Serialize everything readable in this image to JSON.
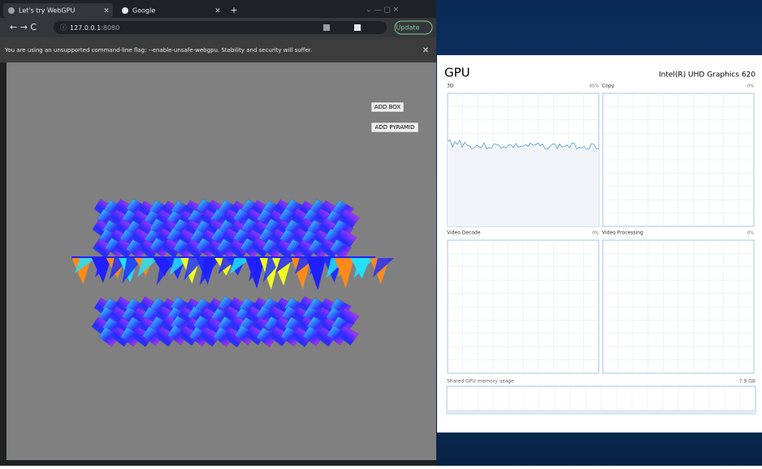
{
  "browser": {
    "tabs": [
      "Let's try WebGPU",
      "Google"
    ],
    "url_host": "127.0.0.1",
    "url_port": ":8080",
    "update_button": "Update",
    "infobar": "You are using an unsupported command-line flag: --enable-unsafe-webgpu. Stability and security will suffer.",
    "buttons": [
      "ADD BOX",
      "ADD PYRAMID"
    ]
  },
  "task_manager": {
    "title": "GPU",
    "adapter": "Intel(R) UHD Graphics 620",
    "engines": [
      {
        "name": "3D",
        "usage": "65%"
      },
      {
        "name": "Copy",
        "usage": "0%"
      },
      {
        "name": "Video Decode",
        "usage": "0%"
      },
      {
        "name": "Video Processing",
        "usage": "0%"
      }
    ],
    "shared_memory": {
      "label": "Shared GPU memory usage",
      "value": "7.9 GB"
    }
  }
}
